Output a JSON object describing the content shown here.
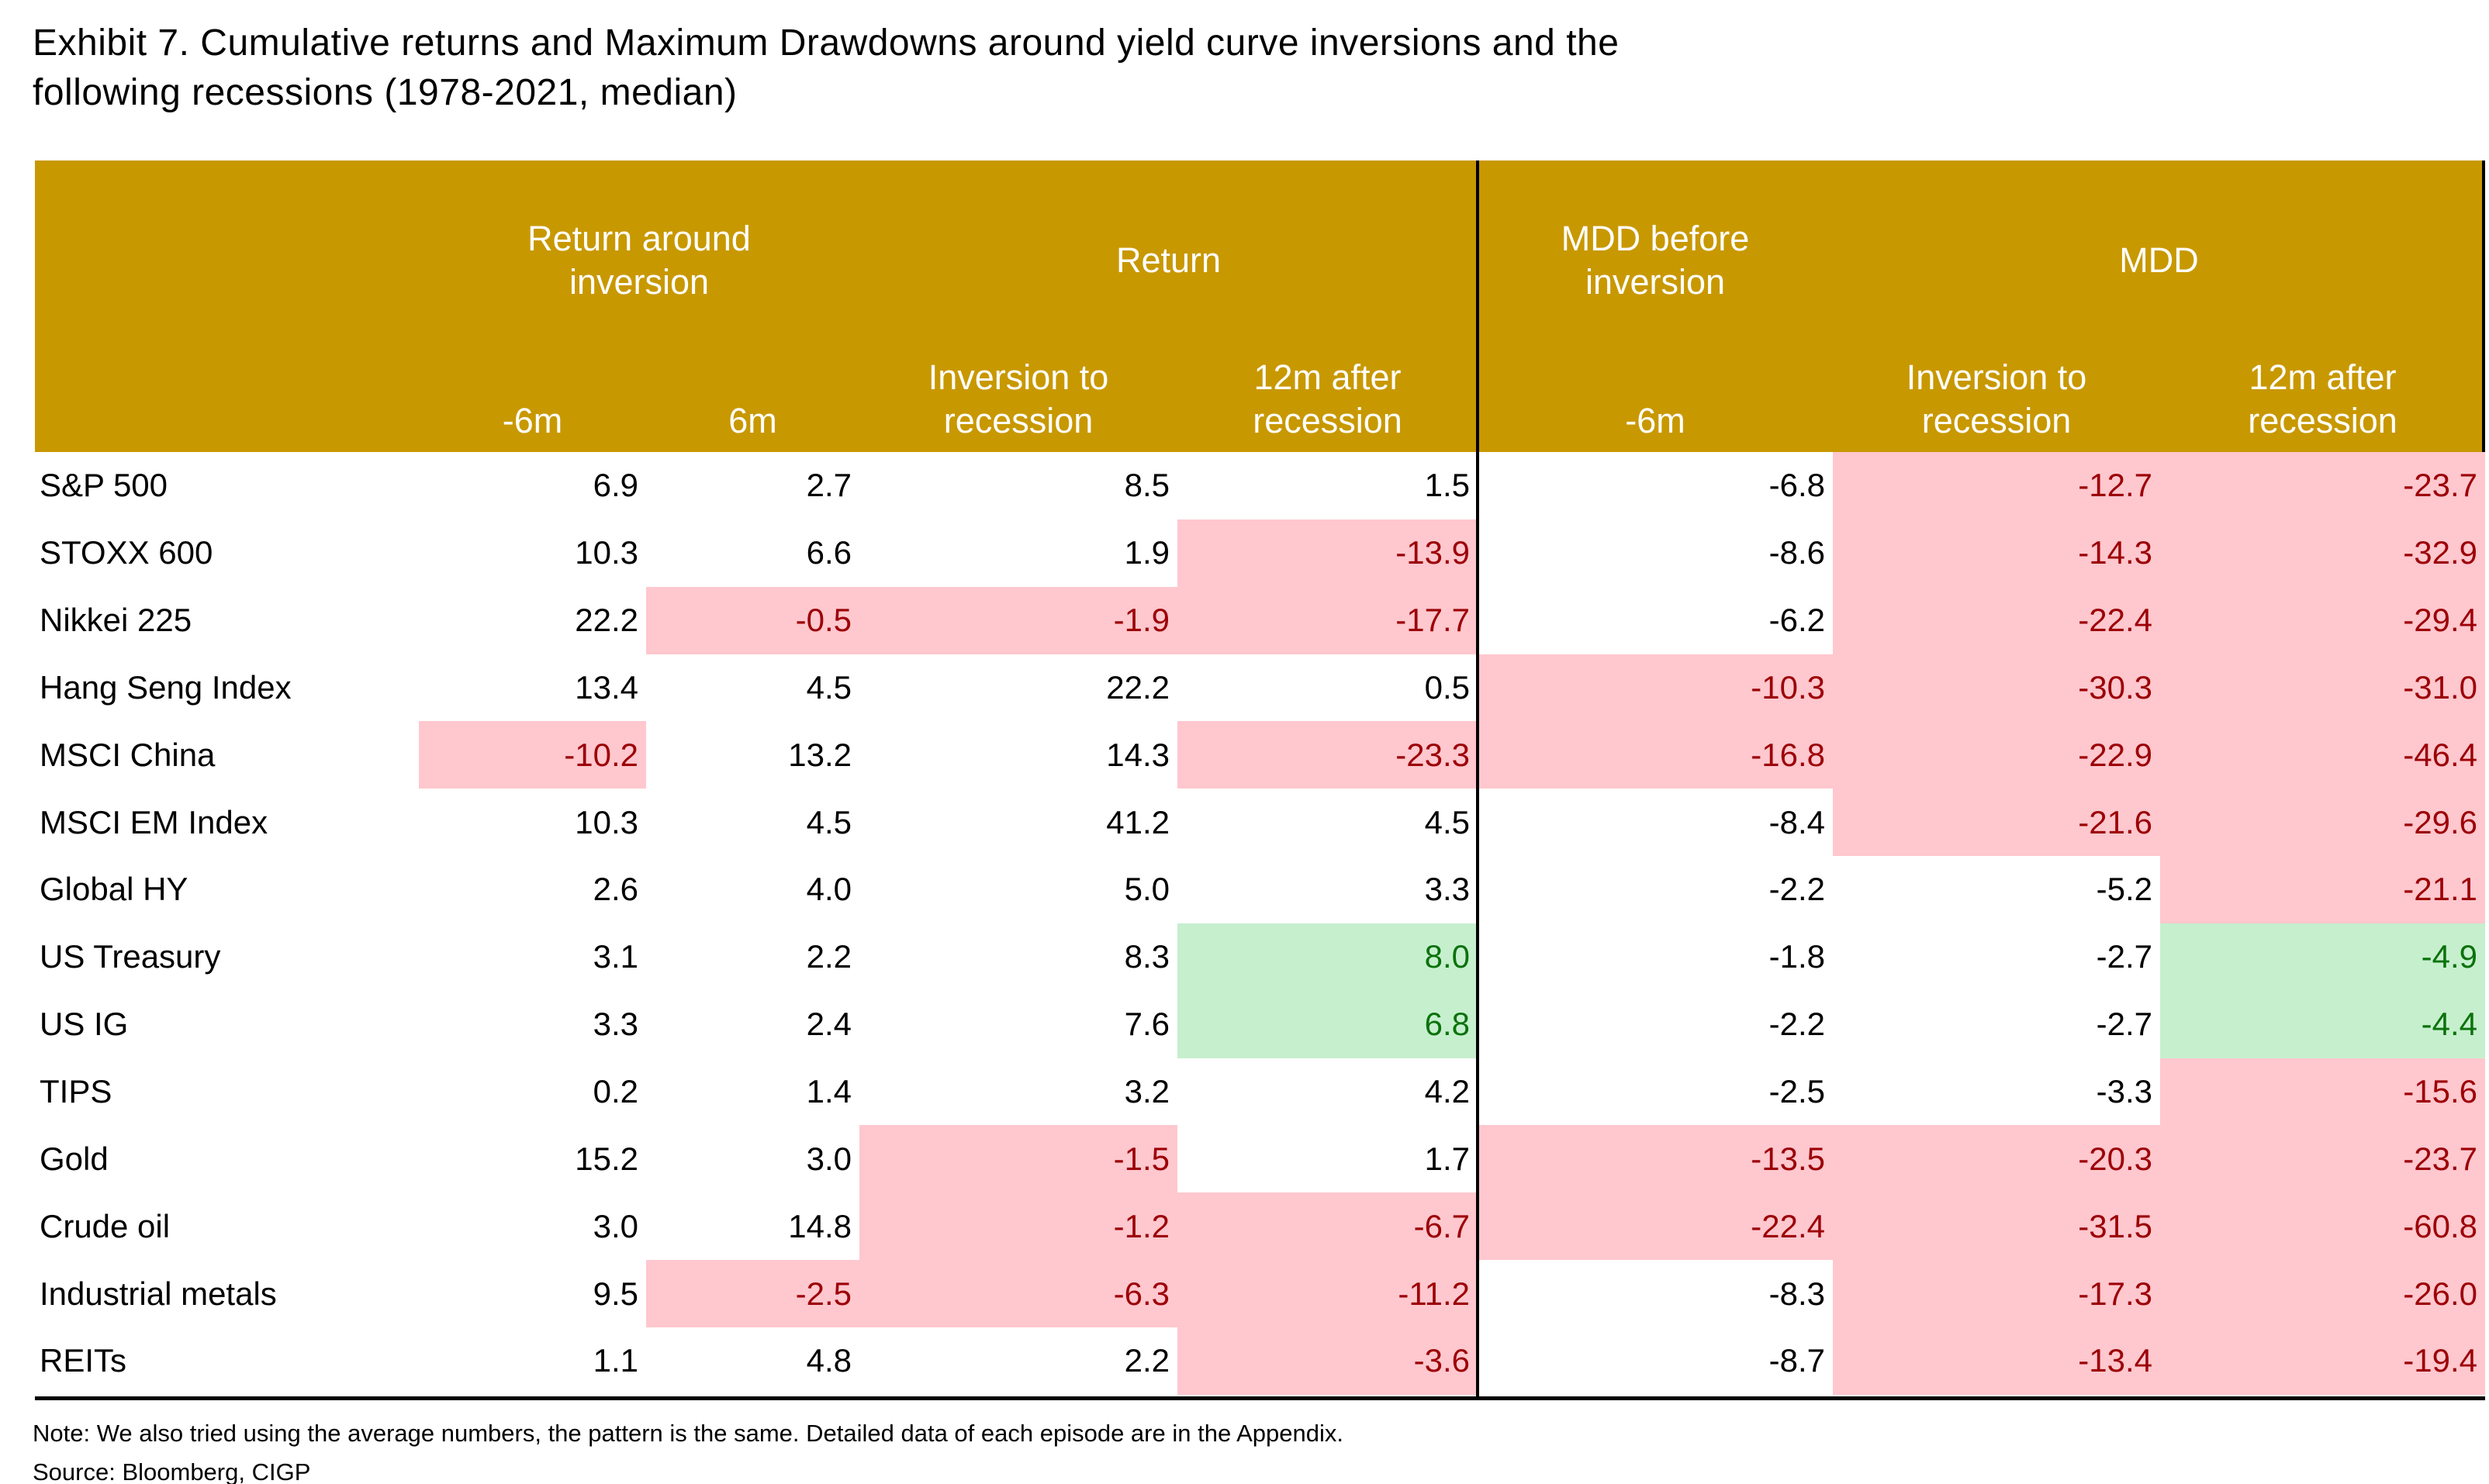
{
  "title": {
    "line1": "Exhibit 7. Cumulative returns and Maximum Drawdowns around yield curve inversions and the",
    "line2": "following recessions (1978-2021, median)"
  },
  "table": {
    "header": {
      "groups": [
        {
          "label": "",
          "span": 1
        },
        {
          "label": "Return around inversion",
          "span": 2
        },
        {
          "label": "Return",
          "span": 2
        },
        {
          "label": "MDD before inversion",
          "span": 1
        },
        {
          "label": "MDD",
          "span": 2
        }
      ],
      "subcolumns": [
        "",
        "-6m",
        "6m",
        "Inversion to recession",
        "12m after recession",
        "-6m",
        "Inversion to recession",
        "12m after recession"
      ]
    },
    "rows": [
      {
        "label": "S&P 500",
        "cells": [
          {
            "v": "6.9"
          },
          {
            "v": "2.7"
          },
          {
            "v": "8.5"
          },
          {
            "v": "1.5"
          },
          {
            "v": "-6.8"
          },
          {
            "v": "-12.7",
            "s": "bad"
          },
          {
            "v": "-23.7",
            "s": "bad"
          }
        ]
      },
      {
        "label": "STOXX 600",
        "cells": [
          {
            "v": "10.3"
          },
          {
            "v": "6.6"
          },
          {
            "v": "1.9"
          },
          {
            "v": "-13.9",
            "s": "bad"
          },
          {
            "v": "-8.6"
          },
          {
            "v": "-14.3",
            "s": "bad"
          },
          {
            "v": "-32.9",
            "s": "bad"
          }
        ]
      },
      {
        "label": "Nikkei 225",
        "cells": [
          {
            "v": "22.2"
          },
          {
            "v": "-0.5",
            "s": "bad"
          },
          {
            "v": "-1.9",
            "s": "bad"
          },
          {
            "v": "-17.7",
            "s": "bad"
          },
          {
            "v": "-6.2"
          },
          {
            "v": "-22.4",
            "s": "bad"
          },
          {
            "v": "-29.4",
            "s": "bad"
          }
        ]
      },
      {
        "label": "Hang Seng Index",
        "cells": [
          {
            "v": "13.4"
          },
          {
            "v": "4.5"
          },
          {
            "v": "22.2"
          },
          {
            "v": "0.5"
          },
          {
            "v": "-10.3",
            "s": "bad"
          },
          {
            "v": "-30.3",
            "s": "bad"
          },
          {
            "v": "-31.0",
            "s": "bad"
          }
        ]
      },
      {
        "label": "MSCI China",
        "cells": [
          {
            "v": "-10.2",
            "s": "bad"
          },
          {
            "v": "13.2"
          },
          {
            "v": "14.3"
          },
          {
            "v": "-23.3",
            "s": "bad"
          },
          {
            "v": "-16.8",
            "s": "bad"
          },
          {
            "v": "-22.9",
            "s": "bad"
          },
          {
            "v": "-46.4",
            "s": "bad"
          }
        ]
      },
      {
        "label": "MSCI EM Index",
        "cells": [
          {
            "v": "10.3"
          },
          {
            "v": "4.5"
          },
          {
            "v": "41.2"
          },
          {
            "v": "4.5"
          },
          {
            "v": "-8.4"
          },
          {
            "v": "-21.6",
            "s": "bad"
          },
          {
            "v": "-29.6",
            "s": "bad"
          }
        ]
      },
      {
        "label": "Global HY",
        "cells": [
          {
            "v": "2.6"
          },
          {
            "v": "4.0"
          },
          {
            "v": "5.0"
          },
          {
            "v": "3.3"
          },
          {
            "v": "-2.2"
          },
          {
            "v": "-5.2"
          },
          {
            "v": "-21.1",
            "s": "bad"
          }
        ]
      },
      {
        "label": "US Treasury",
        "cells": [
          {
            "v": "3.1"
          },
          {
            "v": "2.2"
          },
          {
            "v": "8.3"
          },
          {
            "v": "8.0",
            "s": "good"
          },
          {
            "v": "-1.8"
          },
          {
            "v": "-2.7"
          },
          {
            "v": "-4.9",
            "s": "good"
          }
        ]
      },
      {
        "label": "US IG",
        "cells": [
          {
            "v": "3.3"
          },
          {
            "v": "2.4"
          },
          {
            "v": "7.6"
          },
          {
            "v": "6.8",
            "s": "good"
          },
          {
            "v": "-2.2"
          },
          {
            "v": "-2.7"
          },
          {
            "v": "-4.4",
            "s": "good"
          }
        ]
      },
      {
        "label": "TIPS",
        "cells": [
          {
            "v": "0.2"
          },
          {
            "v": "1.4"
          },
          {
            "v": "3.2"
          },
          {
            "v": "4.2"
          },
          {
            "v": "-2.5"
          },
          {
            "v": "-3.3"
          },
          {
            "v": "-15.6",
            "s": "bad"
          }
        ]
      },
      {
        "label": "Gold",
        "cells": [
          {
            "v": "15.2"
          },
          {
            "v": "3.0"
          },
          {
            "v": "-1.5",
            "s": "bad"
          },
          {
            "v": "1.7"
          },
          {
            "v": "-13.5",
            "s": "bad"
          },
          {
            "v": "-20.3",
            "s": "bad"
          },
          {
            "v": "-23.7",
            "s": "bad"
          }
        ]
      },
      {
        "label": "Crude oil",
        "cells": [
          {
            "v": "3.0"
          },
          {
            "v": "14.8"
          },
          {
            "v": "-1.2",
            "s": "bad"
          },
          {
            "v": "-6.7",
            "s": "bad"
          },
          {
            "v": "-22.4",
            "s": "bad"
          },
          {
            "v": "-31.5",
            "s": "bad"
          },
          {
            "v": "-60.8",
            "s": "bad"
          }
        ]
      },
      {
        "label": "Industrial metals",
        "cells": [
          {
            "v": "9.5"
          },
          {
            "v": "-2.5",
            "s": "bad"
          },
          {
            "v": "-6.3",
            "s": "bad"
          },
          {
            "v": "-11.2",
            "s": "bad"
          },
          {
            "v": "-8.3"
          },
          {
            "v": "-17.3",
            "s": "bad"
          },
          {
            "v": "-26.0",
            "s": "bad"
          }
        ]
      },
      {
        "label": "REITs",
        "cells": [
          {
            "v": "1.1"
          },
          {
            "v": "4.8"
          },
          {
            "v": "2.2"
          },
          {
            "v": "-3.6",
            "s": "bad"
          },
          {
            "v": "-8.7"
          },
          {
            "v": "-13.4",
            "s": "bad"
          },
          {
            "v": "-19.4",
            "s": "bad"
          }
        ]
      }
    ]
  },
  "notes": {
    "note": "Note: We also tried using the average numbers, the pattern is the same. Detailed data of each episode are in the Appendix.",
    "source": "Source: Bloomberg, CIGP"
  },
  "colors": {
    "header_bg": "#C89800",
    "header_text": "#FFFFFF",
    "negative_bg": "#FFC7CE",
    "negative_text": "#9C0006",
    "positive_bg": "#C6EFCE",
    "positive_text": "#0B720B",
    "divider": "#000000"
  }
}
